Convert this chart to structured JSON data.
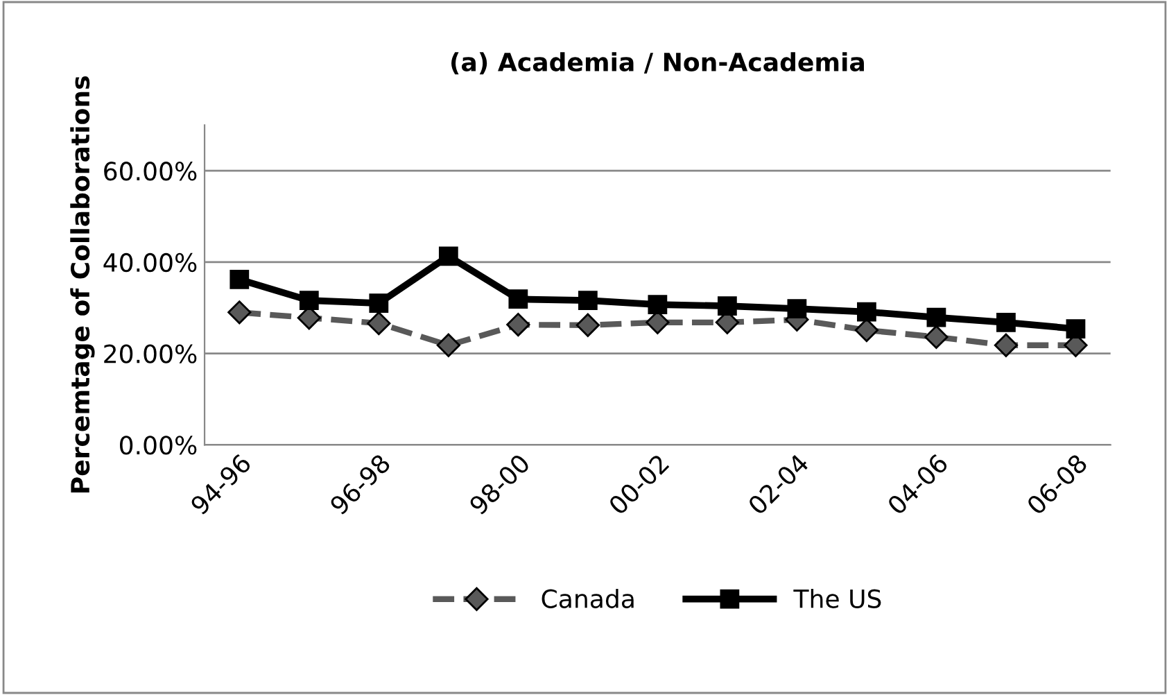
{
  "chart_data": {
    "type": "line",
    "title": "(a) Academia / Non-Academia",
    "ylabel": "Percemtage of Collaborations",
    "categories": [
      "94-96",
      null,
      "96-98",
      null,
      "98-00",
      null,
      "00-02",
      null,
      "02-04",
      null,
      "04-06",
      null,
      "06-08"
    ],
    "series": [
      {
        "name": "Canada",
        "color": "#595959",
        "marker": "diamond",
        "line_style": "dashed",
        "values": [
          29.0,
          27.8,
          26.6,
          21.8,
          26.3,
          26.2,
          26.8,
          26.8,
          27.4,
          25.1,
          23.6,
          21.8,
          21.8
        ]
      },
      {
        "name": "The US",
        "color": "#000000",
        "marker": "square",
        "line_style": "solid",
        "values": [
          36.2,
          31.6,
          31.0,
          41.3,
          31.9,
          31.6,
          30.7,
          30.4,
          29.8,
          29.1,
          27.9,
          26.8,
          25.4
        ]
      }
    ],
    "ylim": [
      0,
      70
    ],
    "yticks": [
      {
        "value": 0,
        "label": "0.00%"
      },
      {
        "value": 20,
        "label": "20.00%"
      },
      {
        "value": 40,
        "label": "40.00%"
      },
      {
        "value": 60,
        "label": "60.00%"
      }
    ],
    "grid": "y",
    "legend": "bottom"
  }
}
